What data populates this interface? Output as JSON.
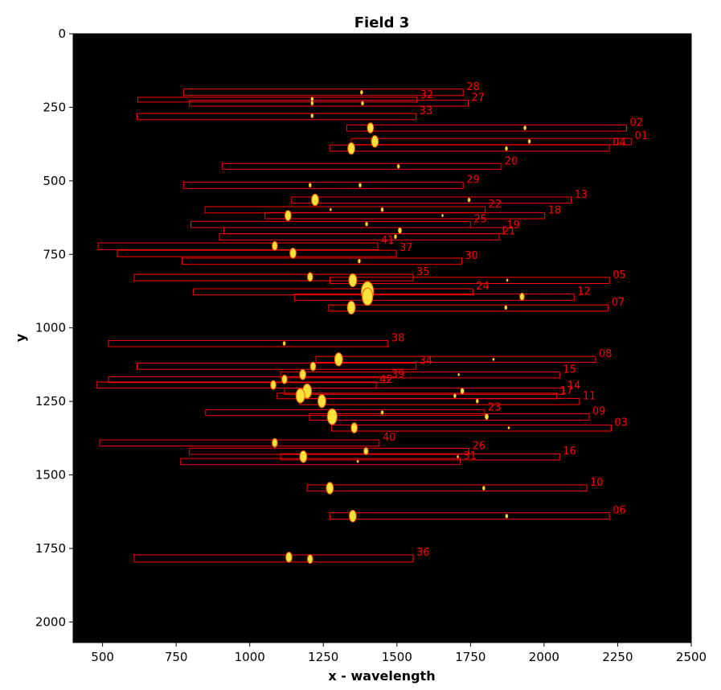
{
  "chart_data": {
    "type": "scatter",
    "title": "Field 3",
    "xlabel": "x - wavelength",
    "ylabel": "y",
    "xlim": [
      400,
      2500
    ],
    "ylim": [
      2070,
      0
    ],
    "y_inverted": true,
    "xticks": [
      500,
      750,
      1000,
      1250,
      1500,
      1750,
      2000,
      2250,
      2500
    ],
    "xtick_labels": [
      "500",
      "750",
      "1000",
      "1250",
      "1500",
      "1750",
      "2000",
      "2250",
      "2500"
    ],
    "yticks": [
      0,
      250,
      500,
      750,
      1000,
      1250,
      1500,
      1750,
      2000
    ],
    "ytick_labels": [
      "0",
      "250",
      "500",
      "750",
      "1000",
      "1250",
      "1500",
      "1750",
      "2000"
    ],
    "background_color": "#000000",
    "box_color": "#ff0000",
    "spot_color": "#ffe23a",
    "spot_edge_color": "#ff5a00",
    "slits": [
      {
        "id": "28",
        "x0": 775,
        "x1": 1725,
        "y0": 188,
        "y1": 210,
        "spots": [
          {
            "x": 1380,
            "y": 199,
            "r": 3
          }
        ]
      },
      {
        "id": "32",
        "x0": 620,
        "x1": 1568,
        "y0": 216,
        "y1": 232,
        "spots": [
          {
            "x": 1212,
            "y": 222,
            "r": 3
          }
        ]
      },
      {
        "id": "27",
        "x0": 795,
        "x1": 1742,
        "y0": 226,
        "y1": 246,
        "spots": [
          {
            "x": 1212,
            "y": 236,
            "r": 3
          },
          {
            "x": 1383,
            "y": 236,
            "r": 3
          }
        ]
      },
      {
        "id": "33",
        "x0": 617,
        "x1": 1565,
        "y0": 271,
        "y1": 292,
        "spots": [
          {
            "x": 1212,
            "y": 279,
            "r": 3
          }
        ]
      },
      {
        "id": "02",
        "x0": 1330,
        "x1": 2280,
        "y0": 310,
        "y1": 331,
        "spots": [
          {
            "x": 1410,
            "y": 320,
            "r": 7
          },
          {
            "x": 1935,
            "y": 320,
            "r": 3
          }
        ]
      },
      {
        "id": "01",
        "x0": 1345,
        "x1": 2297,
        "y0": 356,
        "y1": 377,
        "spots": [
          {
            "x": 1425,
            "y": 366,
            "r": 8
          },
          {
            "x": 1950,
            "y": 366,
            "r": 3
          }
        ]
      },
      {
        "id": "04",
        "x0": 1272,
        "x1": 2222,
        "y0": 378,
        "y1": 399,
        "spots": [
          {
            "x": 1345,
            "y": 390,
            "r": 8
          },
          {
            "x": 1872,
            "y": 390,
            "r": 3
          }
        ]
      },
      {
        "id": "20",
        "x0": 907,
        "x1": 1855,
        "y0": 441,
        "y1": 461,
        "spots": [
          {
            "x": 1505,
            "y": 451,
            "r": 3
          }
        ]
      },
      {
        "id": "29",
        "x0": 775,
        "x1": 1725,
        "y0": 505,
        "y1": 526,
        "spots": [
          {
            "x": 1205,
            "y": 515,
            "r": 3
          },
          {
            "x": 1375,
            "y": 515,
            "r": 3
          }
        ]
      },
      {
        "id": "13",
        "x0": 1142,
        "x1": 2092,
        "y0": 555,
        "y1": 576,
        "spots": [
          {
            "x": 1222,
            "y": 565,
            "r": 8
          },
          {
            "x": 1745,
            "y": 565,
            "r": 3
          }
        ]
      },
      {
        "id": "22",
        "x0": 848,
        "x1": 1800,
        "y0": 588,
        "y1": 609,
        "spots": [
          {
            "x": 1275,
            "y": 598,
            "r": 2
          },
          {
            "x": 1450,
            "y": 598,
            "r": 3
          }
        ]
      },
      {
        "id": "18",
        "x0": 1052,
        "x1": 2002,
        "y0": 608,
        "y1": 629,
        "spots": [
          {
            "x": 1130,
            "y": 618,
            "r": 7
          },
          {
            "x": 1655,
            "y": 618,
            "r": 2
          }
        ]
      },
      {
        "id": "25",
        "x0": 800,
        "x1": 1750,
        "y0": 638,
        "y1": 659,
        "spots": [
          {
            "x": 1397,
            "y": 647,
            "r": 3
          }
        ]
      },
      {
        "id": "19",
        "x0": 912,
        "x1": 1862,
        "y0": 659,
        "y1": 680,
        "spots": [
          {
            "x": 1510,
            "y": 669,
            "r": 4
          }
        ]
      },
      {
        "id": "21",
        "x0": 897,
        "x1": 1847,
        "y0": 680,
        "y1": 701,
        "spots": [
          {
            "x": 1495,
            "y": 690,
            "r": 3
          }
        ]
      },
      {
        "id": "41",
        "x0": 485,
        "x1": 1435,
        "y0": 711,
        "y1": 734,
        "spots": [
          {
            "x": 1085,
            "y": 721,
            "r": 6
          }
        ]
      },
      {
        "id": "37",
        "x0": 550,
        "x1": 1498,
        "y0": 736,
        "y1": 758,
        "spots": [
          {
            "x": 1147,
            "y": 746,
            "r": 7
          }
        ]
      },
      {
        "id": "30",
        "x0": 770,
        "x1": 1720,
        "y0": 763,
        "y1": 784,
        "spots": [
          {
            "x": 1372,
            "y": 773,
            "r": 3
          }
        ]
      },
      {
        "id": "35",
        "x0": 607,
        "x1": 1555,
        "y0": 818,
        "y1": 840,
        "spots": [
          {
            "x": 1205,
            "y": 827,
            "r": 6
          }
        ]
      },
      {
        "id": "05",
        "x0": 1272,
        "x1": 2222,
        "y0": 828,
        "y1": 849,
        "spots": [
          {
            "x": 1350,
            "y": 838,
            "r": 9
          },
          {
            "x": 1875,
            "y": 838,
            "r": 2
          }
        ]
      },
      {
        "id": "24",
        "x0": 808,
        "x1": 1758,
        "y0": 867,
        "y1": 888,
        "spots": [
          {
            "x": 1400,
            "y": 877,
            "r": 14
          }
        ]
      },
      {
        "id": "12",
        "x0": 1152,
        "x1": 2102,
        "y0": 885,
        "y1": 906,
        "spots": [
          {
            "x": 1400,
            "y": 894,
            "r": 12
          },
          {
            "x": 1925,
            "y": 894,
            "r": 5
          }
        ]
      },
      {
        "id": "07",
        "x0": 1268,
        "x1": 2218,
        "y0": 922,
        "y1": 943,
        "spots": [
          {
            "x": 1345,
            "y": 931,
            "r": 9
          },
          {
            "x": 1870,
            "y": 931,
            "r": 3
          }
        ]
      },
      {
        "id": "38",
        "x0": 520,
        "x1": 1470,
        "y0": 1043,
        "y1": 1064,
        "spots": [
          {
            "x": 1117,
            "y": 1053,
            "r": 3
          }
        ]
      },
      {
        "id": "08",
        "x0": 1225,
        "x1": 2175,
        "y0": 1097,
        "y1": 1117,
        "spots": [
          {
            "x": 1302,
            "y": 1107,
            "r": 9
          },
          {
            "x": 1828,
            "y": 1107,
            "r": 2
          }
        ]
      },
      {
        "id": "34",
        "x0": 617,
        "x1": 1565,
        "y0": 1120,
        "y1": 1141,
        "spots": [
          {
            "x": 1215,
            "y": 1131,
            "r": 6
          }
        ]
      },
      {
        "id": "15",
        "x0": 1105,
        "x1": 2053,
        "y0": 1150,
        "y1": 1170,
        "spots": [
          {
            "x": 1180,
            "y": 1159,
            "r": 7
          },
          {
            "x": 1710,
            "y": 1159,
            "r": 2
          }
        ]
      },
      {
        "id": "39",
        "x0": 520,
        "x1": 1470,
        "y0": 1166,
        "y1": 1186,
        "spots": [
          {
            "x": 1118,
            "y": 1175,
            "r": 6
          }
        ]
      },
      {
        "id": "42",
        "x0": 480,
        "x1": 1430,
        "y0": 1184,
        "y1": 1205,
        "spots": [
          {
            "x": 1080,
            "y": 1194,
            "r": 6
          }
        ]
      },
      {
        "id": "14",
        "x0": 1118,
        "x1": 2068,
        "y0": 1205,
        "y1": 1226,
        "spots": [
          {
            "x": 1195,
            "y": 1215,
            "r": 10
          },
          {
            "x": 1722,
            "y": 1215,
            "r": 4
          }
        ]
      },
      {
        "id": "17",
        "x0": 1093,
        "x1": 2043,
        "y0": 1222,
        "y1": 1241,
        "spots": [
          {
            "x": 1172,
            "y": 1231,
            "r": 10
          },
          {
            "x": 1697,
            "y": 1231,
            "r": 3
          }
        ]
      },
      {
        "id": "11",
        "x0": 1170,
        "x1": 2120,
        "y0": 1240,
        "y1": 1261,
        "spots": [
          {
            "x": 1245,
            "y": 1249,
            "r": 9
          },
          {
            "x": 1773,
            "y": 1249,
            "r": 3
          }
        ]
      },
      {
        "id": "23",
        "x0": 850,
        "x1": 1798,
        "y0": 1278,
        "y1": 1298,
        "spots": [
          {
            "x": 1450,
            "y": 1288,
            "r": 3
          }
        ]
      },
      {
        "id": "09",
        "x0": 1203,
        "x1": 2153,
        "y0": 1292,
        "y1": 1314,
        "spots": [
          {
            "x": 1280,
            "y": 1302,
            "r": 11
          },
          {
            "x": 1805,
            "y": 1302,
            "r": 4
          }
        ]
      },
      {
        "id": "03",
        "x0": 1278,
        "x1": 2228,
        "y0": 1330,
        "y1": 1351,
        "spots": [
          {
            "x": 1355,
            "y": 1340,
            "r": 7
          },
          {
            "x": 1880,
            "y": 1340,
            "r": 2
          }
        ]
      },
      {
        "id": "40",
        "x0": 490,
        "x1": 1440,
        "y0": 1381,
        "y1": 1402,
        "spots": [
          {
            "x": 1085,
            "y": 1391,
            "r": 6
          }
        ]
      },
      {
        "id": "26",
        "x0": 795,
        "x1": 1745,
        "y0": 1409,
        "y1": 1430,
        "spots": [
          {
            "x": 1395,
            "y": 1419,
            "r": 5
          }
        ]
      },
      {
        "id": "16",
        "x0": 1105,
        "x1": 2053,
        "y0": 1428,
        "y1": 1449,
        "spots": [
          {
            "x": 1182,
            "y": 1438,
            "r": 8
          },
          {
            "x": 1707,
            "y": 1438,
            "r": 2
          }
        ]
      },
      {
        "id": "31",
        "x0": 765,
        "x1": 1715,
        "y0": 1444,
        "y1": 1465,
        "spots": [
          {
            "x": 1367,
            "y": 1454,
            "r": 2
          }
        ]
      },
      {
        "id": "10",
        "x0": 1195,
        "x1": 2145,
        "y0": 1534,
        "y1": 1555,
        "spots": [
          {
            "x": 1272,
            "y": 1545,
            "r": 8
          },
          {
            "x": 1795,
            "y": 1545,
            "r": 3
          }
        ]
      },
      {
        "id": "06",
        "x0": 1272,
        "x1": 2222,
        "y0": 1629,
        "y1": 1650,
        "spots": [
          {
            "x": 1350,
            "y": 1640,
            "r": 8
          },
          {
            "x": 1873,
            "y": 1640,
            "r": 3
          }
        ]
      },
      {
        "id": "36",
        "x0": 607,
        "x1": 1555,
        "y0": 1772,
        "y1": 1796,
        "spots": [
          {
            "x": 1133,
            "y": 1780,
            "r": 7
          },
          {
            "x": 1205,
            "y": 1786,
            "r": 6
          }
        ]
      }
    ]
  }
}
